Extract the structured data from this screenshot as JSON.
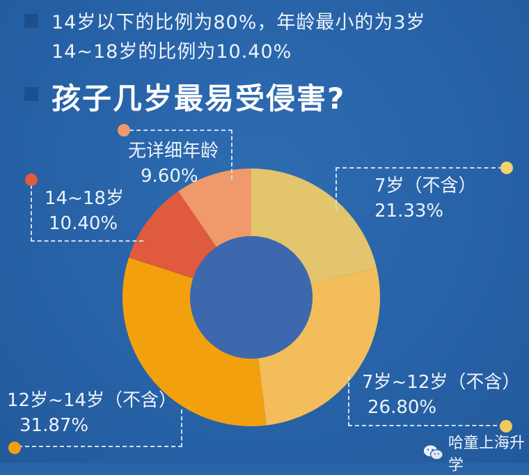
{
  "header": {
    "line1": "14岁以下的比例为80%，年龄最小的为3岁",
    "line2": "14~18岁的比例为10.40%",
    "title": "孩子几岁最易受侵害?"
  },
  "labels": {
    "under7": {
      "name": "7岁（不含）",
      "value": "21.33%"
    },
    "age7to12": {
      "name": "7岁~12岁（不含）",
      "value": "26.80%"
    },
    "age12to14": {
      "name": "12岁~14岁（不含）",
      "value": "31.87%"
    },
    "age14to18": {
      "name": "14~18岁",
      "value": "10.40%"
    },
    "unknown": {
      "name": "无详细年龄",
      "value": "9.60%"
    }
  },
  "brand": {
    "icon": "wechat-icon",
    "name": "哈童上海升学"
  },
  "colors": {
    "background": "#2761a6",
    "donut_center": "#3d68ae",
    "under7": "#e2c56c",
    "age7to12": "#f2bd5a",
    "age12to14": "#f3a00e",
    "age14to18": "#e05a3e",
    "unknown": "#f0996a"
  },
  "chart_data": {
    "type": "pie",
    "variant": "donut",
    "title": "孩子几岁最易受侵害?",
    "subtitle": "14岁以下的比例为80%，年龄最小的为3岁；14~18岁的比例为10.40%",
    "categories": [
      "7岁（不含）",
      "7岁~12岁（不含）",
      "12岁~14岁（不含）",
      "14~18岁",
      "无详细年龄"
    ],
    "values": [
      21.33,
      26.8,
      31.87,
      10.4,
      9.6
    ],
    "unit": "%",
    "start_angle": "12 o'clock, clockwise",
    "colors": [
      "#e2c56c",
      "#f2bd5a",
      "#f3a00e",
      "#e05a3e",
      "#f0996a"
    ],
    "legend": "callout labels with dashed leader boxes"
  }
}
